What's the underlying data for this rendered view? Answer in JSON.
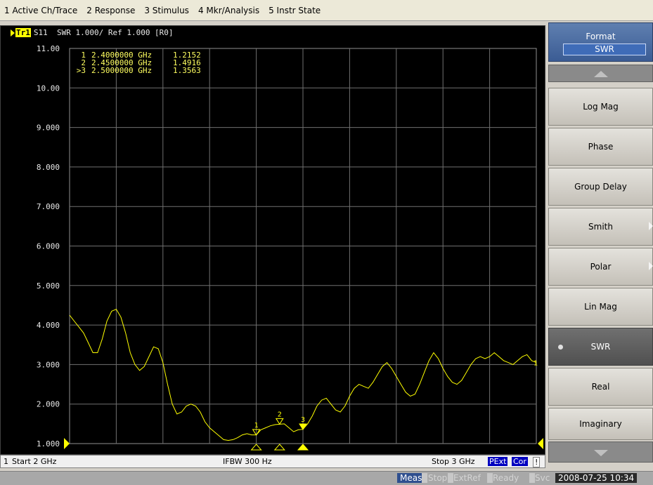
{
  "menu": [
    "1 Active Ch/Trace",
    "2 Response",
    "3 Stimulus",
    "4 Mkr/Analysis",
    "5 Instr State"
  ],
  "trace": {
    "badge": "Tr1",
    "header": "S11  SWR 1.000/ Ref 1.000 [R0]"
  },
  "markers": [
    {
      "id": "1",
      "freq": "2.4000000 GHz",
      "value": "1.2152"
    },
    {
      "id": "2",
      "freq": "2.4500000 GHz",
      "value": "1.4916"
    },
    {
      "id": ">3",
      "freq": "2.5000000 GHz",
      "value": "1.3563"
    }
  ],
  "marker_labels": [
    "1",
    "2",
    "3"
  ],
  "trace_end_label": "1",
  "chart_data": {
    "type": "line",
    "yticks": [
      "11.00",
      "10.00",
      "9.000",
      "8.000",
      "7.000",
      "6.000",
      "5.000",
      "4.000",
      "3.000",
      "2.000",
      "1.000"
    ],
    "ylim": [
      1,
      11
    ],
    "xlim_ghz": [
      2.0,
      3.0
    ],
    "grid": true,
    "reference_value": 1.0,
    "series": [
      {
        "color": "#ffff00",
        "x": [
          2.0,
          2.01,
          2.02,
          2.03,
          2.04,
          2.05,
          2.06,
          2.07,
          2.08,
          2.09,
          2.1,
          2.11,
          2.12,
          2.13,
          2.14,
          2.15,
          2.16,
          2.17,
          2.18,
          2.19,
          2.2,
          2.21,
          2.22,
          2.23,
          2.24,
          2.25,
          2.26,
          2.27,
          2.28,
          2.29,
          2.3,
          2.31,
          2.32,
          2.33,
          2.34,
          2.35,
          2.36,
          2.37,
          2.38,
          2.39,
          2.4,
          2.41,
          2.42,
          2.43,
          2.44,
          2.45,
          2.46,
          2.47,
          2.48,
          2.49,
          2.5,
          2.51,
          2.52,
          2.53,
          2.54,
          2.55,
          2.56,
          2.57,
          2.58,
          2.59,
          2.6,
          2.61,
          2.62,
          2.63,
          2.64,
          2.65,
          2.66,
          2.67,
          2.68,
          2.69,
          2.7,
          2.71,
          2.72,
          2.73,
          2.74,
          2.75,
          2.76,
          2.77,
          2.78,
          2.79,
          2.8,
          2.81,
          2.82,
          2.83,
          2.84,
          2.85,
          2.86,
          2.87,
          2.88,
          2.89,
          2.9,
          2.91,
          2.92,
          2.93,
          2.94,
          2.95,
          2.96,
          2.97,
          2.98,
          2.99,
          3.0
        ],
        "y": [
          4.25,
          4.1,
          3.95,
          3.8,
          3.55,
          3.3,
          3.3,
          3.65,
          4.1,
          4.35,
          4.4,
          4.2,
          3.8,
          3.3,
          3.0,
          2.85,
          2.95,
          3.2,
          3.45,
          3.4,
          3.05,
          2.5,
          2.0,
          1.75,
          1.8,
          1.95,
          2.0,
          1.95,
          1.8,
          1.55,
          1.4,
          1.3,
          1.2,
          1.1,
          1.08,
          1.1,
          1.15,
          1.22,
          1.25,
          1.22,
          1.22,
          1.35,
          1.4,
          1.45,
          1.48,
          1.49,
          1.5,
          1.4,
          1.3,
          1.35,
          1.36,
          1.5,
          1.7,
          1.95,
          2.1,
          2.15,
          2.0,
          1.85,
          1.8,
          1.95,
          2.2,
          2.4,
          2.5,
          2.45,
          2.4,
          2.55,
          2.75,
          2.95,
          3.05,
          2.9,
          2.7,
          2.5,
          2.3,
          2.2,
          2.25,
          2.5,
          2.8,
          3.1,
          3.3,
          3.15,
          2.9,
          2.7,
          2.55,
          2.5,
          2.6,
          2.8,
          3.0,
          3.15,
          3.2,
          3.15,
          3.2,
          3.3,
          3.2,
          3.1,
          3.05,
          3.0,
          3.1,
          3.2,
          3.25,
          3.1,
          3.05
        ]
      }
    ],
    "marker_points": [
      {
        "x": 2.4,
        "y": 1.2152
      },
      {
        "x": 2.45,
        "y": 1.4916
      },
      {
        "x": 2.5,
        "y": 1.3563
      }
    ]
  },
  "stimulus": {
    "channel": "1",
    "start": "Start 2 GHz",
    "ifbw": "IFBW 300 Hz",
    "stop": "Stop 3 GHz",
    "pext": "PExt",
    "cor": "Cor",
    "warn": "!"
  },
  "softkeys": {
    "title": "Format",
    "current": "SWR",
    "items": [
      {
        "label": "Log Mag",
        "submenu": false
      },
      {
        "label": "Phase",
        "submenu": false
      },
      {
        "label": "Group Delay",
        "submenu": false
      },
      {
        "label": "Smith",
        "submenu": true
      },
      {
        "label": "Polar",
        "submenu": true
      },
      {
        "label": "Lin Mag",
        "submenu": false
      },
      {
        "label": "SWR",
        "submenu": false
      },
      {
        "label": "Real",
        "submenu": false
      },
      {
        "label": "Imaginary",
        "submenu": false
      }
    ]
  },
  "status": {
    "meas": "Meas",
    "stop": "Stop",
    "extref": "ExtRef",
    "ready": "Ready",
    "svc": "Svc",
    "datetime": "2008-07-25 10:34"
  }
}
